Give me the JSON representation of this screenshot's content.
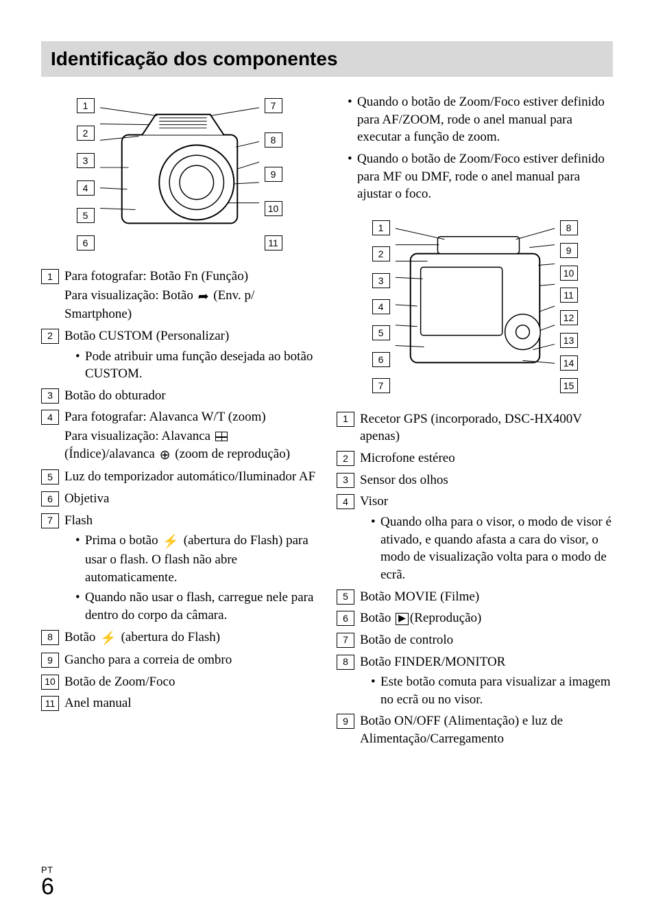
{
  "title": "Identificação dos componentes",
  "footer": {
    "lang": "PT",
    "page": "6"
  },
  "diagram1": {
    "description": "camera front-side view illustration",
    "left_callouts": [
      "1",
      "2",
      "3",
      "4",
      "5",
      "6"
    ],
    "right_callouts": [
      "7",
      "8",
      "9",
      "10",
      "11"
    ]
  },
  "diagram2": {
    "description": "camera back-side view illustration",
    "left_callouts": [
      "1",
      "2",
      "3",
      "4",
      "5",
      "6",
      "7"
    ],
    "right_callouts": [
      "8",
      "9",
      "10",
      "11",
      "12",
      "13",
      "14",
      "15"
    ]
  },
  "leftList": [
    {
      "n": "1",
      "lines": [
        "Para fotografar: Botão Fn (Função)",
        "Para visualização: Botão {send-icon} (Env. p/ Smartphone)"
      ]
    },
    {
      "n": "2",
      "lines": [
        "Botão CUSTOM (Personalizar)"
      ],
      "sub": [
        "Pode atribuir uma função desejada ao botão CUSTOM."
      ]
    },
    {
      "n": "3",
      "lines": [
        "Botão do obturador"
      ]
    },
    {
      "n": "4",
      "lines": [
        "Para fotografar: Alavanca W/T (zoom)",
        "Para visualização: Alavanca {index-icon} (Índice)/alavanca {magnify-icon} (zoom de reprodução)"
      ]
    },
    {
      "n": "5",
      "lines": [
        "Luz do temporizador automático/Iluminador AF"
      ]
    },
    {
      "n": "6",
      "lines": [
        "Objetiva"
      ]
    },
    {
      "n": "7",
      "lines": [
        "Flash"
      ],
      "sub": [
        "Prima o botão {flash-icon} (abertura do Flash) para usar o flash. O flash não abre automaticamente.",
        "Quando não usar o flash, carregue nele para dentro do corpo da câmara."
      ]
    },
    {
      "n": "8",
      "lines": [
        "Botão {flash-icon} (abertura do Flash)"
      ]
    },
    {
      "n": "9",
      "lines": [
        "Gancho para a correia de ombro"
      ]
    },
    {
      "n": "10",
      "lines": [
        "Botão de Zoom/Foco"
      ]
    },
    {
      "n": "11",
      "lines": [
        "Anel manual"
      ]
    }
  ],
  "rightIntroBullets": [
    "Quando o botão de Zoom/Foco estiver definido para AF/ZOOM, rode o anel manual para executar a função de zoom.",
    "Quando o botão de Zoom/Foco estiver definido para MF ou DMF, rode o anel manual para ajustar o foco."
  ],
  "rightList": [
    {
      "n": "1",
      "lines": [
        "Recetor GPS (incorporado, DSC-HX400V apenas)"
      ]
    },
    {
      "n": "2",
      "lines": [
        "Microfone estéreo"
      ]
    },
    {
      "n": "3",
      "lines": [
        "Sensor dos olhos"
      ]
    },
    {
      "n": "4",
      "lines": [
        "Visor"
      ],
      "sub": [
        "Quando olha para o visor, o modo de visor é ativado, e quando afasta a cara do visor, o modo de visualização volta para o modo de ecrã."
      ]
    },
    {
      "n": "5",
      "lines": [
        "Botão MOVIE (Filme)"
      ]
    },
    {
      "n": "6",
      "lines": [
        "Botão {play-box-icon}(Reprodução)"
      ]
    },
    {
      "n": "7",
      "lines": [
        "Botão de controlo"
      ]
    },
    {
      "n": "8",
      "lines": [
        "Botão FINDER/MONITOR"
      ],
      "sub": [
        "Este botão comuta para visualizar a imagem no ecrã ou no visor."
      ]
    },
    {
      "n": "9",
      "lines": [
        "Botão ON/OFF (Alimentação) e luz de Alimentação/Carregamento"
      ]
    }
  ],
  "iconGlyphs": {
    "send-icon": "➦",
    "index-icon": "▦",
    "magnify-icon": "⊕",
    "flash-icon": "⚡",
    "play-box-icon": "▶"
  }
}
